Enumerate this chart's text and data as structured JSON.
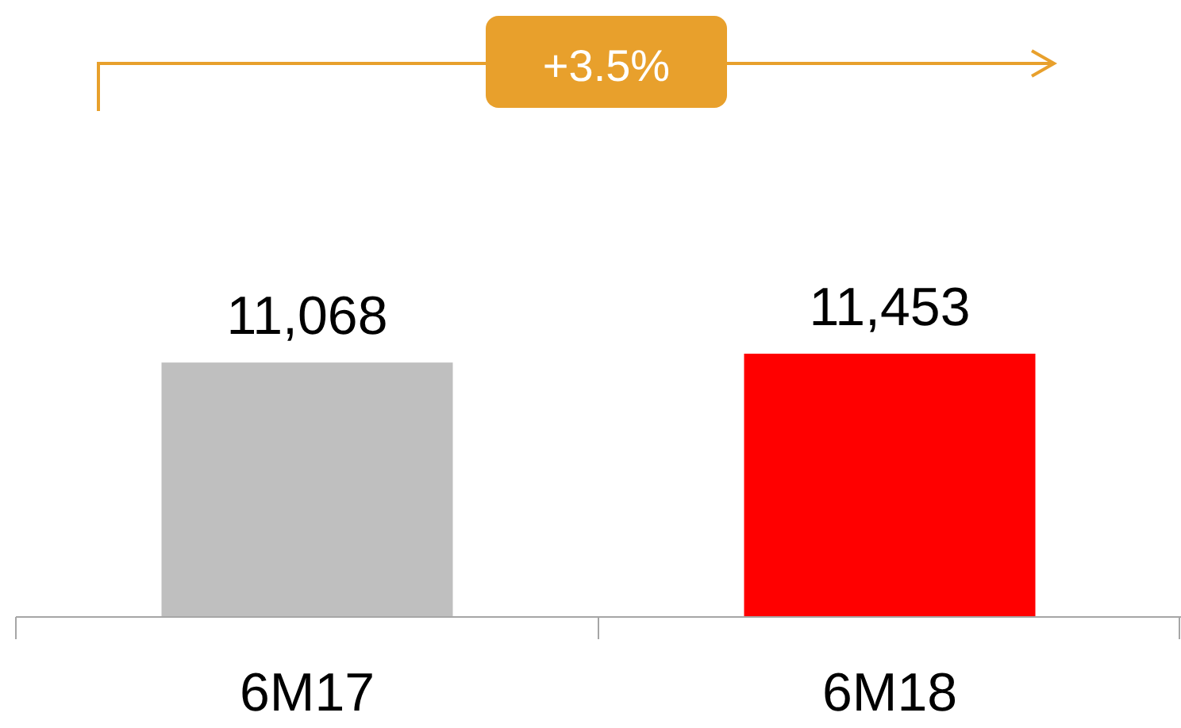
{
  "chart_data": {
    "type": "bar",
    "categories": [
      "6M17",
      "6M18"
    ],
    "values": [
      11068,
      11453
    ],
    "colors": [
      "#bfbfbf",
      "#ff0000"
    ],
    "value_labels": [
      "11,068",
      "11,453"
    ],
    "annotations": [
      "+3.5%"
    ]
  }
}
